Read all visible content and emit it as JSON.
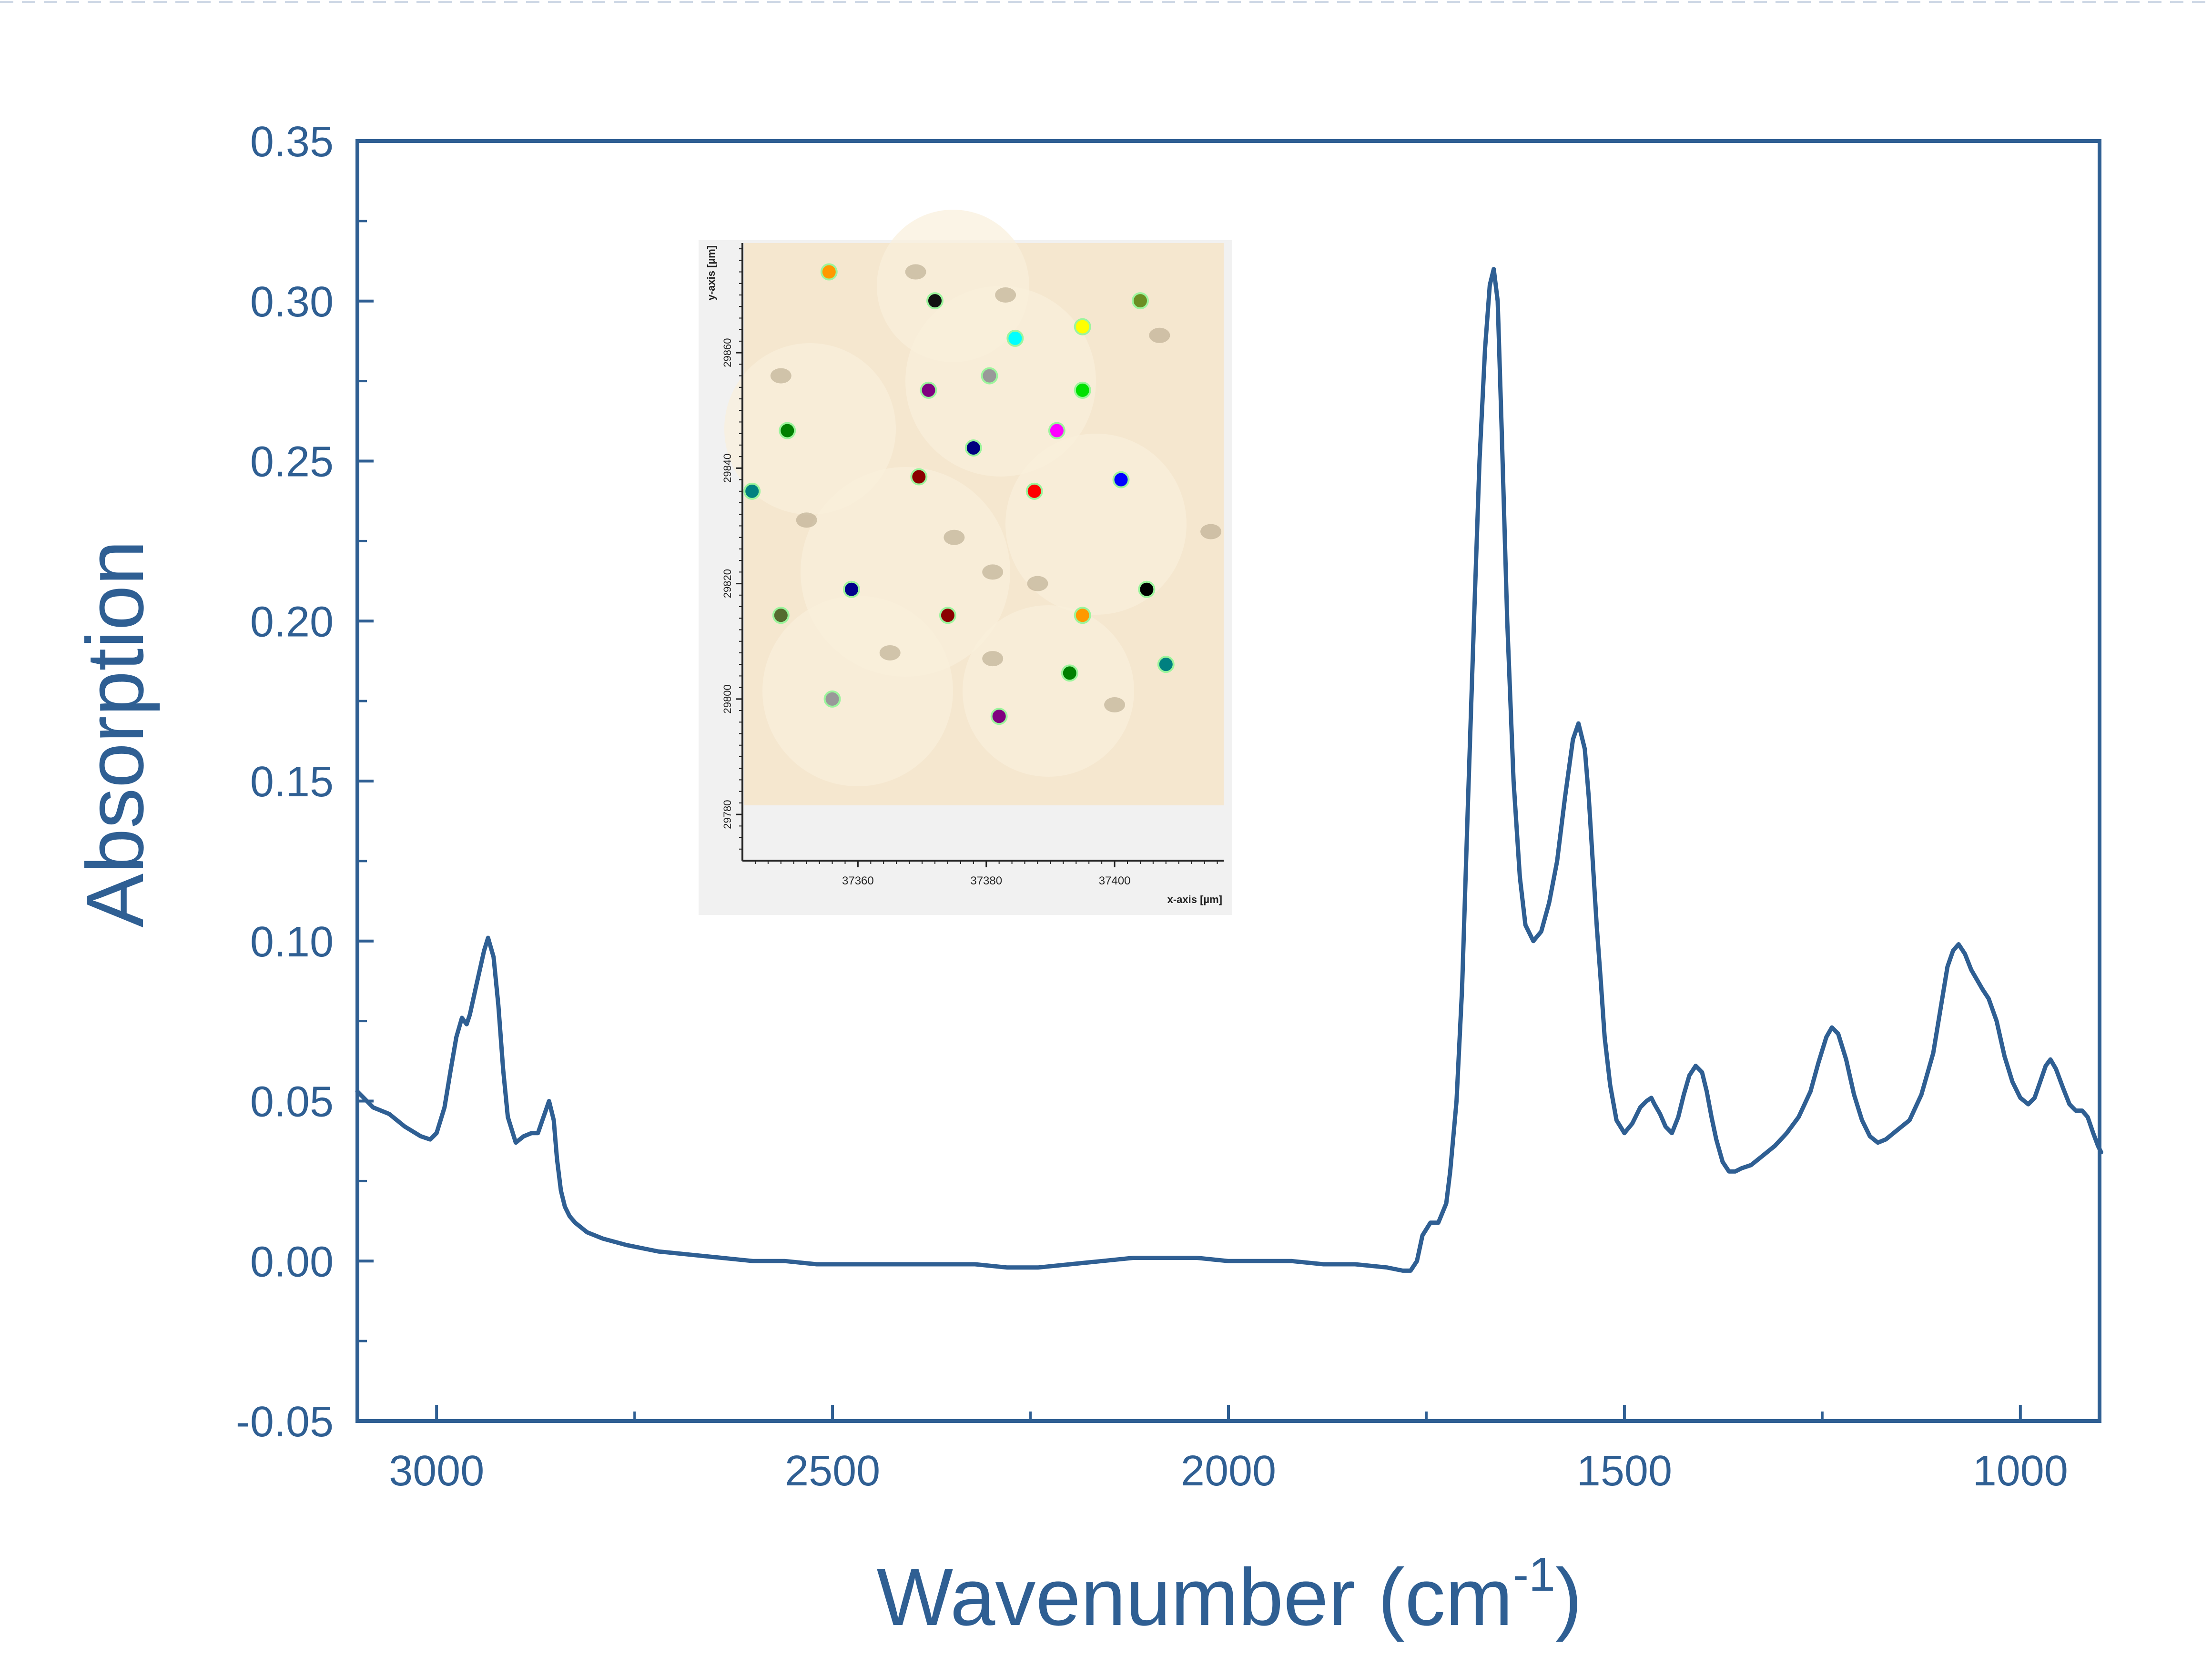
{
  "chart_data": {
    "type": "line",
    "title": "",
    "xlabel": "Wavenumber (cm",
    "xlabel_superscript": "-1",
    "xlabel_tail": ")",
    "ylabel": "Absorption",
    "xlim": [
      3100,
      900
    ],
    "ylim": [
      -0.05,
      0.35
    ],
    "x_reversed": true,
    "grid": false,
    "legend": "none",
    "line_color": "#2f5f93",
    "x_ticks": [
      {
        "value": 3000,
        "label": "3000"
      },
      {
        "value": 2500,
        "label": "2500"
      },
      {
        "value": 2000,
        "label": "2000"
      },
      {
        "value": 1500,
        "label": "1500"
      },
      {
        "value": 1000,
        "label": "1000"
      }
    ],
    "y_ticks": [
      {
        "value": 0.35,
        "label": "0.35"
      },
      {
        "value": 0.3,
        "label": "0.30"
      },
      {
        "value": 0.25,
        "label": "0.25"
      },
      {
        "value": 0.2,
        "label": "0.20"
      },
      {
        "value": 0.15,
        "label": "0.15"
      },
      {
        "value": 0.1,
        "label": "0.10"
      },
      {
        "value": 0.05,
        "label": "0.05"
      },
      {
        "value": 0.0,
        "label": "0.00"
      },
      {
        "value": -0.05,
        "label": "-0.05"
      }
    ],
    "series": [
      {
        "x": [
          3100,
          3080,
          3060,
          3040,
          3020,
          3008,
          3000,
          2990,
          2982,
          2975,
          2968,
          2962,
          2958,
          2950,
          2940,
          2935,
          2928,
          2922,
          2916,
          2910,
          2900,
          2890,
          2880,
          2872,
          2865,
          2858,
          2852,
          2848,
          2843,
          2838,
          2832,
          2825,
          2810,
          2790,
          2760,
          2720,
          2680,
          2640,
          2600,
          2560,
          2520,
          2480,
          2440,
          2400,
          2360,
          2320,
          2280,
          2240,
          2200,
          2160,
          2120,
          2080,
          2040,
          2000,
          1960,
          1920,
          1880,
          1840,
          1800,
          1780,
          1770,
          1762,
          1755,
          1745,
          1735,
          1725,
          1720,
          1712,
          1705,
          1698,
          1690,
          1683,
          1676,
          1670,
          1665,
          1660,
          1655,
          1648,
          1640,
          1632,
          1625,
          1615,
          1605,
          1595,
          1585,
          1575,
          1565,
          1558,
          1550,
          1545,
          1540,
          1535,
          1530,
          1525,
          1518,
          1510,
          1500,
          1490,
          1480,
          1472,
          1466,
          1462,
          1455,
          1448,
          1440,
          1432,
          1425,
          1418,
          1410,
          1402,
          1396,
          1390,
          1384,
          1376,
          1368,
          1360,
          1352,
          1340,
          1325,
          1310,
          1295,
          1280,
          1265,
          1255,
          1245,
          1238,
          1230,
          1220,
          1210,
          1200,
          1190,
          1180,
          1170,
          1155,
          1140,
          1125,
          1110,
          1100,
          1092,
          1085,
          1078,
          1070,
          1062,
          1055,
          1048,
          1040,
          1030,
          1020,
          1010,
          1000,
          990,
          982,
          975,
          968,
          962,
          955,
          946,
          938,
          930,
          922,
          915,
          908,
          902,
          898
        ],
        "y": [
          0.053,
          0.048,
          0.046,
          0.042,
          0.039,
          0.038,
          0.04,
          0.048,
          0.06,
          0.07,
          0.076,
          0.074,
          0.077,
          0.086,
          0.097,
          0.101,
          0.095,
          0.08,
          0.06,
          0.045,
          0.037,
          0.039,
          0.04,
          0.04,
          0.045,
          0.05,
          0.044,
          0.032,
          0.022,
          0.017,
          0.014,
          0.012,
          0.009,
          0.007,
          0.005,
          0.003,
          0.002,
          0.001,
          0.0,
          0.0,
          -0.001,
          -0.001,
          -0.001,
          -0.001,
          -0.001,
          -0.001,
          -0.002,
          -0.002,
          -0.001,
          0.0,
          0.001,
          0.001,
          0.001,
          0.0,
          0.0,
          0.0,
          -0.001,
          -0.001,
          -0.002,
          -0.003,
          -0.003,
          0.0,
          0.008,
          0.012,
          0.012,
          0.018,
          0.028,
          0.05,
          0.085,
          0.14,
          0.2,
          0.25,
          0.285,
          0.305,
          0.31,
          0.3,
          0.26,
          0.2,
          0.15,
          0.12,
          0.105,
          0.1,
          0.103,
          0.112,
          0.125,
          0.145,
          0.163,
          0.168,
          0.16,
          0.145,
          0.125,
          0.105,
          0.088,
          0.07,
          0.055,
          0.044,
          0.04,
          0.043,
          0.048,
          0.05,
          0.051,
          0.049,
          0.046,
          0.042,
          0.04,
          0.045,
          0.052,
          0.058,
          0.061,
          0.059,
          0.053,
          0.045,
          0.038,
          0.031,
          0.028,
          0.028,
          0.029,
          0.03,
          0.033,
          0.036,
          0.04,
          0.045,
          0.053,
          0.062,
          0.07,
          0.073,
          0.071,
          0.063,
          0.052,
          0.044,
          0.039,
          0.037,
          0.038,
          0.041,
          0.044,
          0.052,
          0.065,
          0.08,
          0.092,
          0.097,
          0.099,
          0.096,
          0.091,
          0.088,
          0.085,
          0.082,
          0.075,
          0.064,
          0.056,
          0.051,
          0.049,
          0.051,
          0.056,
          0.061,
          0.063,
          0.06,
          0.054,
          0.049,
          0.047,
          0.047,
          0.045,
          0.04,
          0.036,
          0.034
        ]
      }
    ]
  },
  "inset": {
    "xlabel": "x-axis [µm]",
    "ylabel": "y-axis [µm]",
    "x_ticks": [
      "37360",
      "37380",
      "37400"
    ],
    "y_ticks": [
      "29860",
      "29840",
      "29820",
      "29800",
      "29780"
    ],
    "background_color": "#f5e7cf",
    "spots": [
      {
        "x": 37355.5,
        "y": 29874.0,
        "color": "#ff9900"
      },
      {
        "x": 37372.0,
        "y": 29869.0,
        "color": "#111111"
      },
      {
        "x": 37404.0,
        "y": 29869.0,
        "color": "#6b8e23"
      },
      {
        "x": 37384.5,
        "y": 29862.5,
        "color": "#00ffff"
      },
      {
        "x": 37395.0,
        "y": 29864.5,
        "color": "#ffff00"
      },
      {
        "x": 37371.0,
        "y": 29853.5,
        "color": "#800080"
      },
      {
        "x": 37380.5,
        "y": 29856.0,
        "color": "#999999"
      },
      {
        "x": 37395.0,
        "y": 29853.5,
        "color": "#00e000"
      },
      {
        "x": 37349.0,
        "y": 29846.5,
        "color": "#008000"
      },
      {
        "x": 37378.0,
        "y": 29843.5,
        "color": "#000080"
      },
      {
        "x": 37391.0,
        "y": 29846.5,
        "color": "#ff00ff"
      },
      {
        "x": 37369.5,
        "y": 29838.5,
        "color": "#8b0000"
      },
      {
        "x": 37387.5,
        "y": 29836.0,
        "color": "#ff0000"
      },
      {
        "x": 37401.0,
        "y": 29838.0,
        "color": "#0000ff"
      },
      {
        "x": 37343.5,
        "y": 29836.0,
        "color": "#008080"
      },
      {
        "x": 37359.0,
        "y": 29819.0,
        "color": "#00008b"
      },
      {
        "x": 37405.0,
        "y": 29819.0,
        "color": "#000000"
      },
      {
        "x": 37348.0,
        "y": 29814.5,
        "color": "#556b2f"
      },
      {
        "x": 37374.0,
        "y": 29814.5,
        "color": "#8b0000"
      },
      {
        "x": 37395.0,
        "y": 29814.5,
        "color": "#ff9900"
      },
      {
        "x": 37408.0,
        "y": 29806.0,
        "color": "#008080"
      },
      {
        "x": 37393.0,
        "y": 29804.5,
        "color": "#008000"
      },
      {
        "x": 37356.0,
        "y": 29800.0,
        "color": "#999999"
      },
      {
        "x": 37382.0,
        "y": 29797.0,
        "color": "#800080"
      }
    ],
    "dark_specks": [
      {
        "x": 37369,
        "y": 29874
      },
      {
        "x": 37383,
        "y": 29870
      },
      {
        "x": 37348,
        "y": 29856
      },
      {
        "x": 37407,
        "y": 29863
      },
      {
        "x": 37375,
        "y": 29828
      },
      {
        "x": 37381,
        "y": 29822
      },
      {
        "x": 37365,
        "y": 29808
      },
      {
        "x": 37381,
        "y": 29807
      },
      {
        "x": 37352,
        "y": 29831
      },
      {
        "x": 37415,
        "y": 29829
      },
      {
        "x": 37388,
        "y": 29820
      },
      {
        "x": 37400,
        "y": 29799
      }
    ]
  }
}
